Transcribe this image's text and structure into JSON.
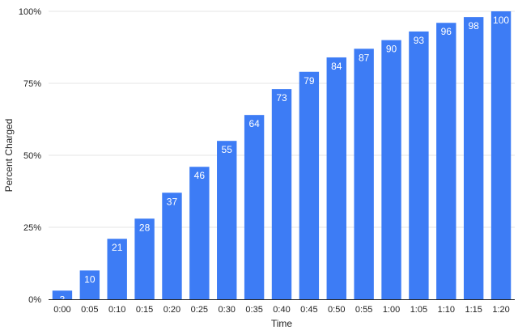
{
  "chart_data": {
    "type": "bar",
    "xlabel": "Time",
    "ylabel": "Percent Charged",
    "categories": [
      "0:00",
      "0:05",
      "0:10",
      "0:15",
      "0:20",
      "0:25",
      "0:30",
      "0:35",
      "0:40",
      "0:45",
      "0:50",
      "0:55",
      "1:00",
      "1:05",
      "1:10",
      "1:15",
      "1:20"
    ],
    "values": [
      3,
      10,
      21,
      28,
      37,
      46,
      55,
      64,
      73,
      79,
      84,
      87,
      90,
      93,
      96,
      98,
      100
    ],
    "data_labels": [
      "3",
      "10",
      "21",
      "28",
      "37",
      "46",
      "55",
      "64",
      "73",
      "79",
      "84",
      "87",
      "90",
      "93",
      "96",
      "98",
      "100"
    ],
    "ylim": [
      0,
      100
    ],
    "yticks": [
      0,
      25,
      50,
      75,
      100
    ],
    "ytick_labels": [
      "0%",
      "25%",
      "50%",
      "75%",
      "100%"
    ],
    "grid": true,
    "legend": "none",
    "colors": {
      "bar": "#3d7cf5"
    }
  }
}
